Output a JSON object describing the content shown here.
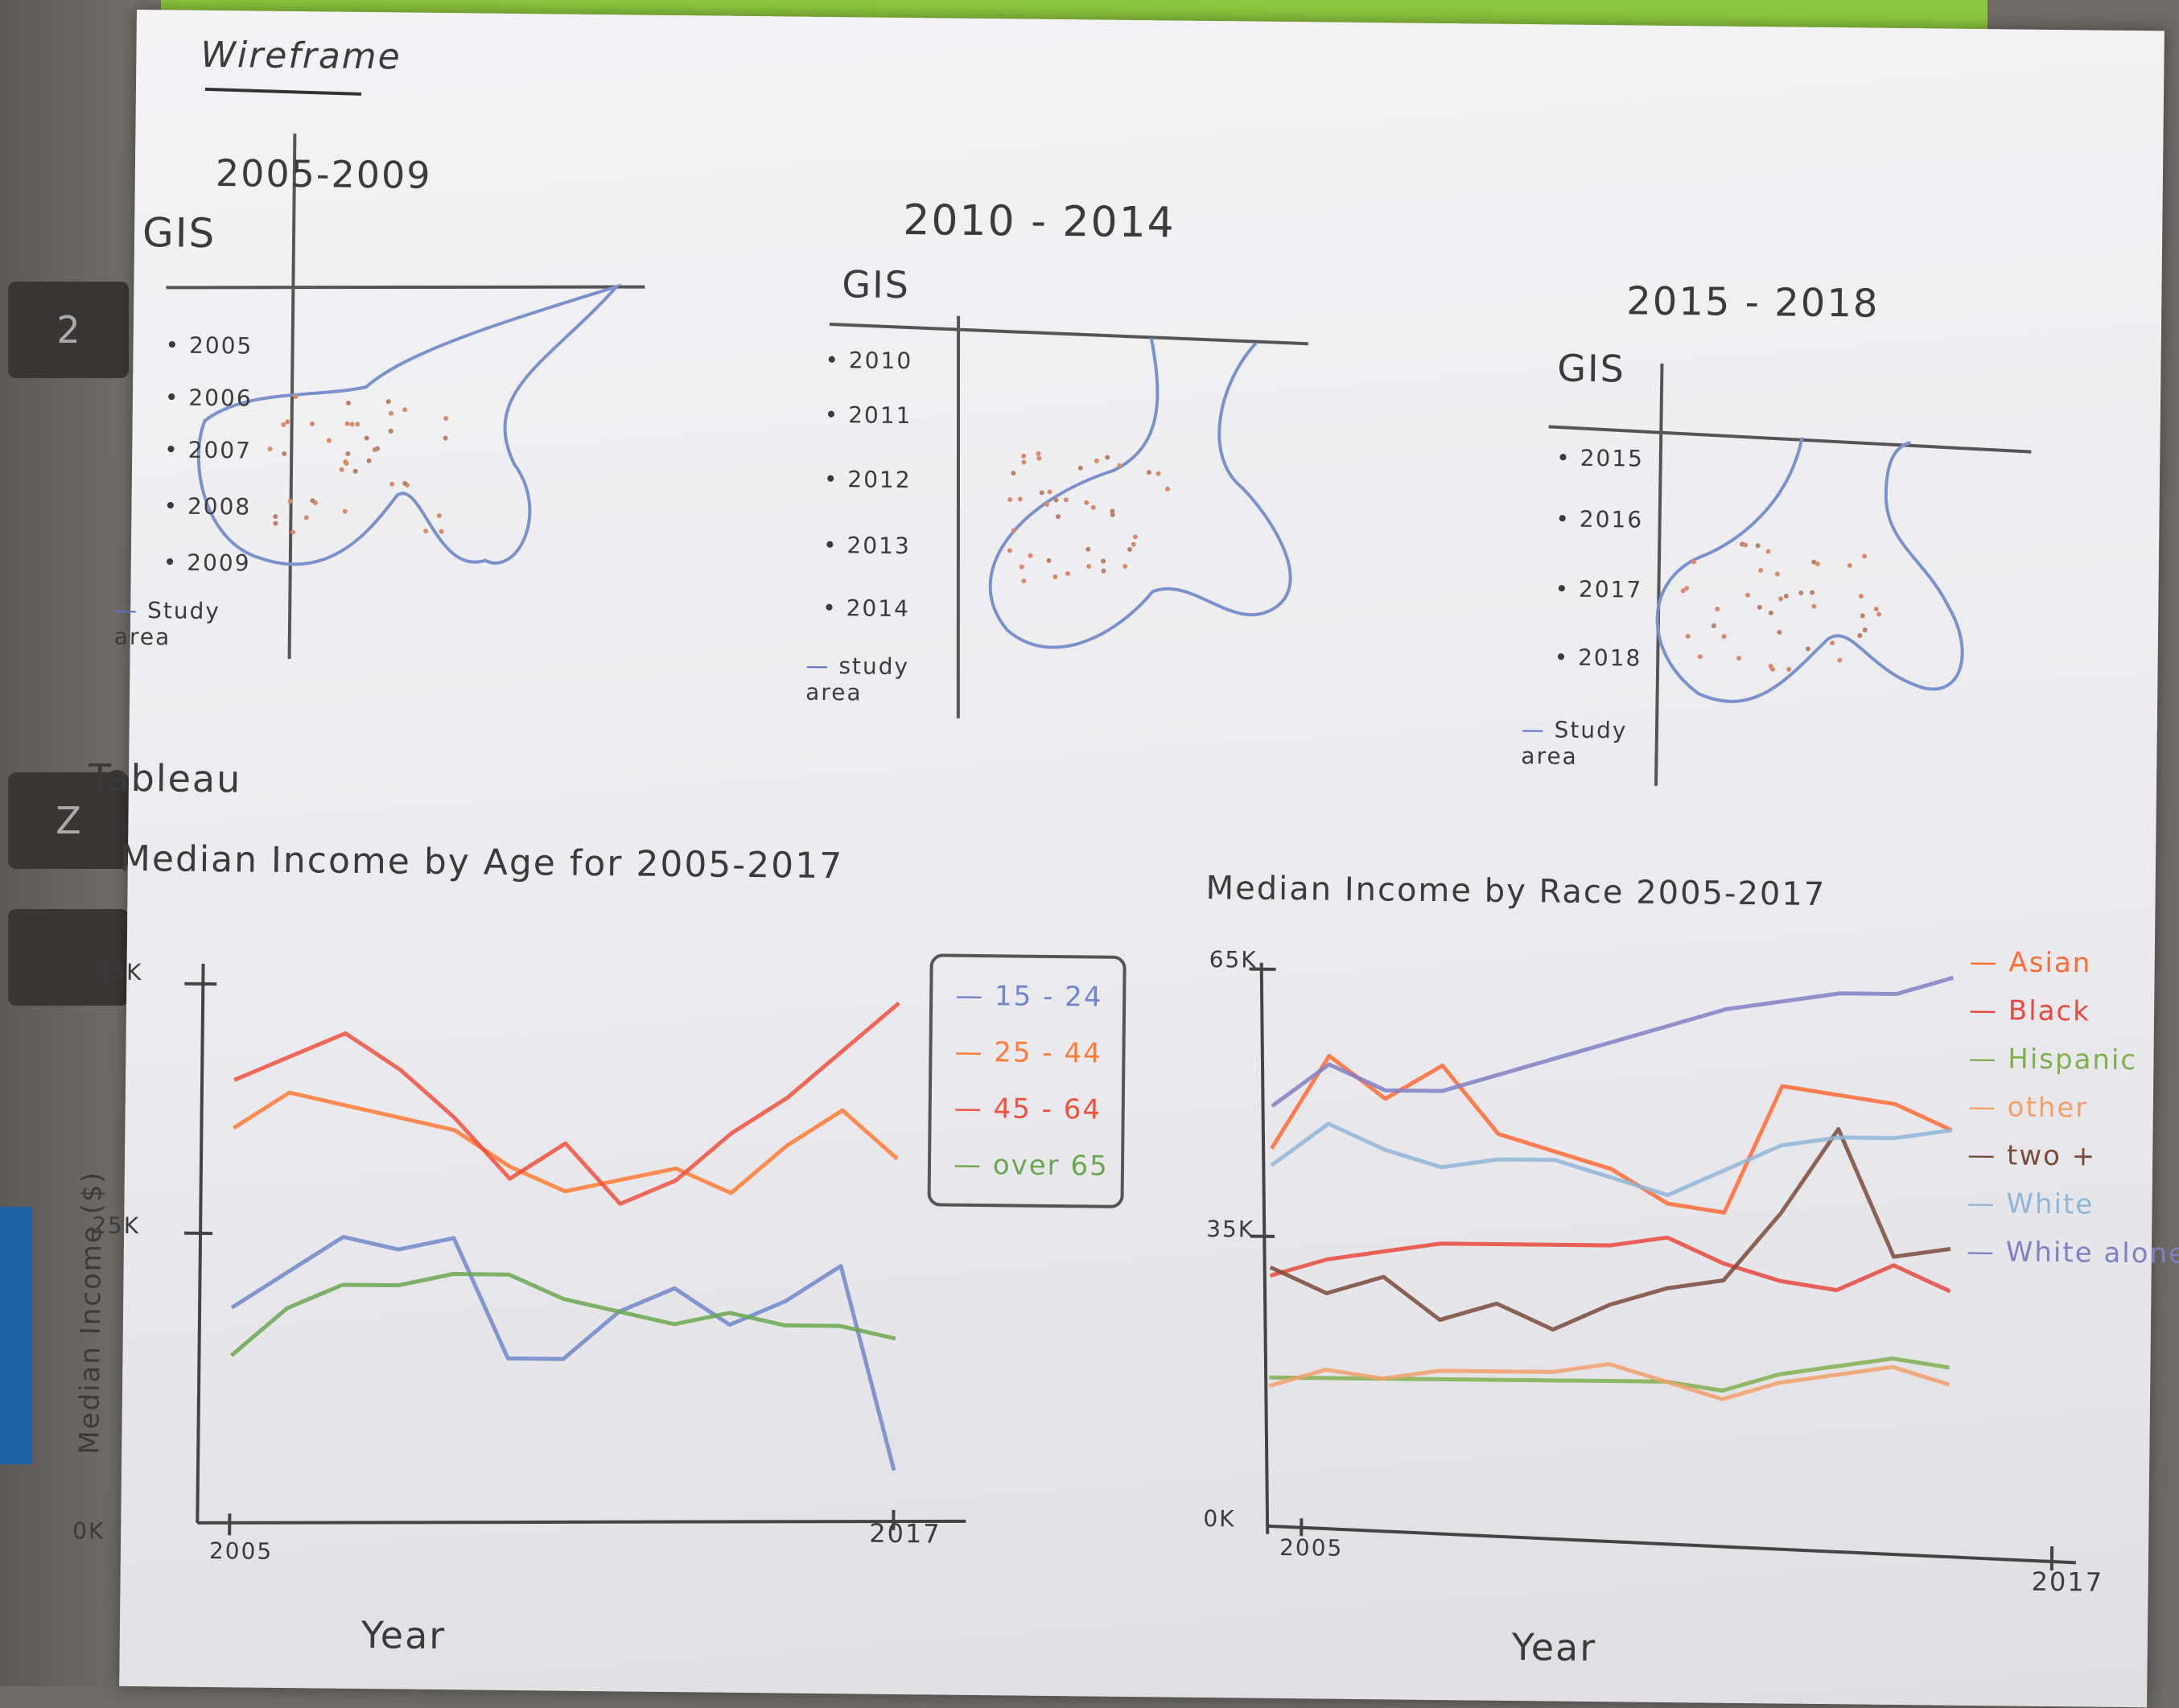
{
  "page": {
    "title": "Wireframe"
  },
  "maps": [
    {
      "period": "2005-2009",
      "tool": "GIS",
      "legend": [
        "2005",
        "2006",
        "2007",
        "2008",
        "2009",
        "Study area"
      ]
    },
    {
      "period": "2010 - 2014",
      "tool": "GIS",
      "legend": [
        "2010",
        "2011",
        "2012",
        "2013",
        "2014",
        "study area"
      ]
    },
    {
      "period": "2015 - 2018",
      "tool": "GIS",
      "legend": [
        "2015",
        "2016",
        "2017",
        "2018",
        "Study area"
      ]
    }
  ],
  "tableau": {
    "label": "Tableau"
  },
  "background_keys": [
    "2",
    "Z"
  ],
  "chart_data": [
    {
      "type": "line",
      "title": "Median Income by Age for 2005-2017",
      "xlabel": "Year",
      "ylabel": "Median Income ($)",
      "x_tick_labels": [
        "2005",
        "2017"
      ],
      "y_tick_labels": [
        "0K",
        "25K",
        "45K"
      ],
      "ylim": [
        0,
        45000
      ],
      "legend_position": "top-right",
      "series": [
        {
          "name": "15 - 24",
          "color": "#6f86c9",
          "values": [
            18000,
            21000,
            24000,
            23000,
            24000,
            14000,
            14000,
            18000,
            20000,
            17000,
            19000,
            22000,
            5000
          ]
        },
        {
          "name": "25 - 44",
          "color": "#ff7a33",
          "values": [
            33000,
            36000,
            35000,
            34000,
            33000,
            30000,
            28000,
            29000,
            30000,
            28000,
            32000,
            35000,
            31000
          ]
        },
        {
          "name": "45 - 64",
          "color": "#f0503c",
          "values": [
            37000,
            39000,
            41000,
            38000,
            34000,
            29000,
            32000,
            27000,
            29000,
            33000,
            36000,
            40000,
            44000
          ]
        },
        {
          "name": "over 65",
          "color": "#6aa84f",
          "values": [
            14000,
            18000,
            20000,
            20000,
            21000,
            21000,
            19000,
            18000,
            17000,
            18000,
            17000,
            17000,
            16000
          ]
        }
      ]
    },
    {
      "type": "line",
      "title": "Median Income by Race 2005-2017",
      "xlabel": "Year",
      "x_tick_labels": [
        "2005",
        "2017"
      ],
      "y_tick_labels": [
        "0K",
        "35K",
        "65K"
      ],
      "ylim": [
        0,
        65000
      ],
      "legend_position": "top-right",
      "series": [
        {
          "name": "Asian",
          "color": "#ff6a35",
          "values": [
            45000,
            56000,
            51000,
            55000,
            47000,
            45000,
            43000,
            39000,
            38000,
            53000,
            52000,
            51000,
            48000
          ]
        },
        {
          "name": "Black",
          "color": "#e8483c",
          "values": [
            30000,
            32000,
            33000,
            34000,
            34000,
            34000,
            34000,
            35000,
            32000,
            30000,
            29000,
            32000,
            29000
          ]
        },
        {
          "name": "Hispanic",
          "color": "#7fb04d",
          "values": [
            18000,
            18000,
            18000,
            18000,
            18000,
            18000,
            18000,
            18000,
            17000,
            19000,
            20000,
            21000,
            20000
          ]
        },
        {
          "name": "other",
          "color": "#f2a06a",
          "values": [
            17000,
            19000,
            18000,
            19000,
            19000,
            19000,
            20000,
            18000,
            16000,
            18000,
            19000,
            20000,
            18000
          ]
        },
        {
          "name": "two +",
          "color": "#7a4a3a",
          "values": [
            31000,
            28000,
            30000,
            25000,
            27000,
            24000,
            27000,
            29000,
            30000,
            38000,
            48000,
            33000,
            34000
          ]
        },
        {
          "name": "White",
          "color": "#8fb6d8",
          "values": [
            43000,
            48000,
            45000,
            43000,
            44000,
            44000,
            42000,
            40000,
            43000,
            46000,
            47000,
            47000,
            48000
          ]
        },
        {
          "name": "White alone",
          "color": "#8080c4",
          "values": [
            50000,
            55000,
            52000,
            52000,
            54000,
            56000,
            58000,
            60000,
            62000,
            63000,
            64000,
            64000,
            66000
          ]
        }
      ]
    }
  ]
}
